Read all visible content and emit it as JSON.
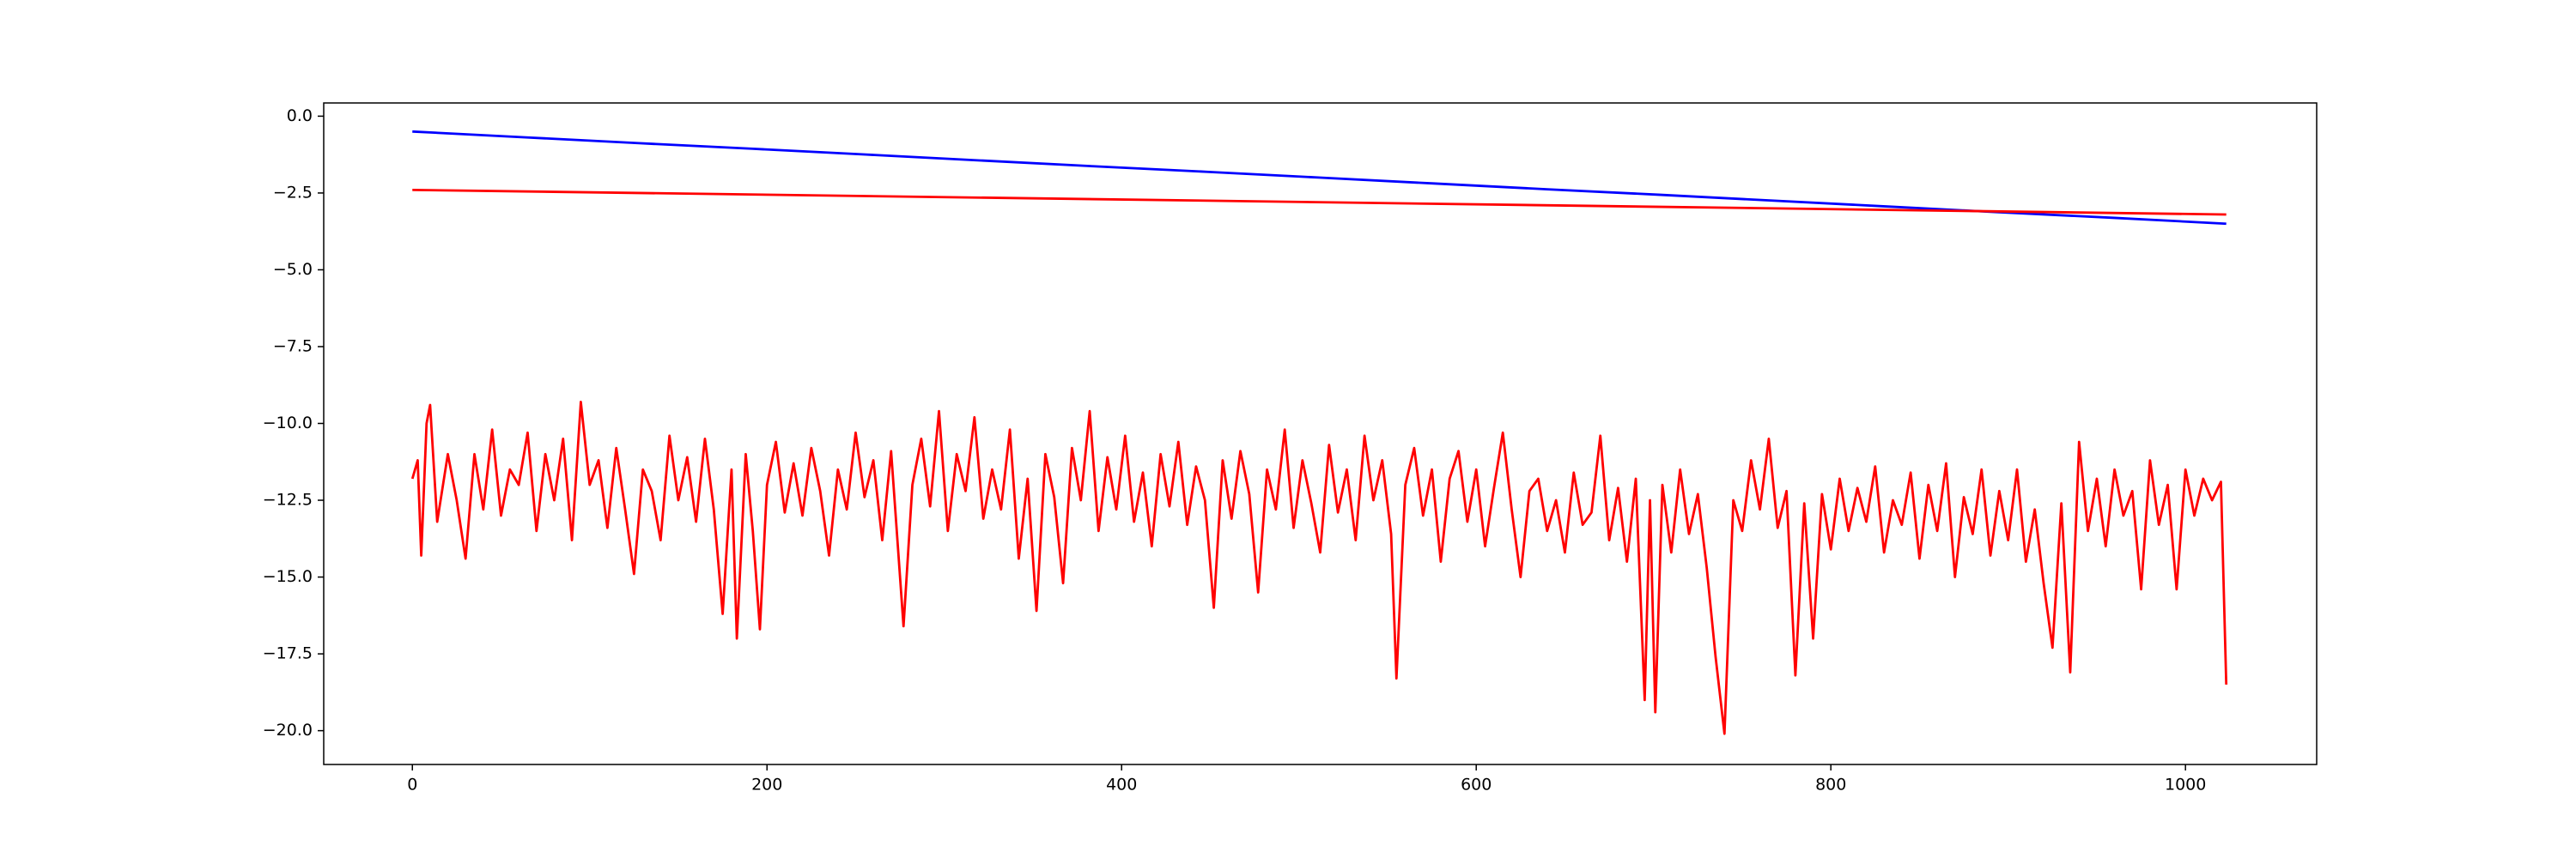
{
  "chart_data": {
    "type": "line",
    "xlim": [
      -50,
      1074
    ],
    "ylim": [
      -21.1,
      0.43
    ],
    "xticks": [
      0,
      200,
      400,
      600,
      800,
      1000
    ],
    "yticks": [
      {
        "value": 0,
        "label": "0.0"
      },
      {
        "value": -2.5,
        "label": "−2.5"
      },
      {
        "value": -5,
        "label": "−5.0"
      },
      {
        "value": -7.5,
        "label": "−7.5"
      },
      {
        "value": -10,
        "label": "−10.0"
      },
      {
        "value": -12.5,
        "label": "−12.5"
      },
      {
        "value": -15,
        "label": "−15.0"
      },
      {
        "value": -17.5,
        "label": "−17.5"
      },
      {
        "value": -20,
        "label": "−20.0"
      }
    ],
    "series": [
      {
        "color": "#0000ff",
        "x": [
          0,
          64,
          128,
          192,
          256,
          320,
          384,
          448,
          512,
          576,
          640,
          704,
          768,
          832,
          896,
          960,
          1023
        ],
        "values": [
          -0.5,
          -0.69,
          -0.88,
          -1.06,
          -1.25,
          -1.44,
          -1.63,
          -1.81,
          -2.0,
          -2.19,
          -2.38,
          -2.56,
          -2.75,
          -2.94,
          -3.13,
          -3.31,
          -3.5
        ]
      },
      {
        "color": "#ff0000",
        "x": [
          0,
          1023
        ],
        "values": [
          -2.4,
          -3.2
        ]
      },
      {
        "color": "#ff0000",
        "x": [
          0,
          3,
          5,
          8,
          10,
          14,
          20,
          25,
          30,
          35,
          40,
          45,
          50,
          55,
          60,
          65,
          70,
          75,
          80,
          85,
          90,
          95,
          100,
          105,
          110,
          115,
          120,
          125,
          130,
          135,
          140,
          145,
          150,
          155,
          160,
          165,
          170,
          175,
          180,
          183,
          188,
          192,
          196,
          200,
          205,
          210,
          215,
          220,
          225,
          230,
          235,
          240,
          245,
          250,
          255,
          260,
          265,
          270,
          277,
          282,
          287,
          292,
          297,
          302,
          307,
          312,
          317,
          322,
          327,
          332,
          337,
          342,
          347,
          352,
          357,
          362,
          367,
          372,
          377,
          382,
          387,
          392,
          397,
          402,
          407,
          412,
          417,
          422,
          427,
          432,
          437,
          442,
          447,
          452,
          457,
          462,
          467,
          472,
          477,
          482,
          487,
          492,
          497,
          502,
          507,
          512,
          517,
          522,
          527,
          532,
          537,
          542,
          547,
          552,
          555,
          560,
          565,
          570,
          575,
          580,
          585,
          590,
          595,
          600,
          605,
          610,
          615,
          620,
          625,
          630,
          635,
          640,
          645,
          650,
          655,
          660,
          665,
          670,
          675,
          680,
          685,
          690,
          695,
          698,
          701,
          705,
          710,
          715,
          720,
          725,
          730,
          735,
          740,
          745,
          750,
          755,
          760,
          765,
          770,
          775,
          780,
          785,
          790,
          795,
          800,
          805,
          810,
          815,
          820,
          825,
          830,
          835,
          840,
          845,
          850,
          855,
          860,
          865,
          870,
          875,
          880,
          885,
          890,
          895,
          900,
          905,
          910,
          915,
          920,
          925,
          930,
          935,
          940,
          945,
          950,
          955,
          960,
          965,
          970,
          975,
          980,
          985,
          990,
          995,
          1000,
          1005,
          1010,
          1015,
          1020,
          1023
        ],
        "values": [
          -11.8,
          -11.2,
          -14.3,
          -10,
          -9.4,
          -13.2,
          -11,
          -12.5,
          -14.4,
          -11,
          -12.8,
          -10.2,
          -13,
          -11.5,
          -12,
          -10.3,
          -13.5,
          -11,
          -12.5,
          -10.5,
          -13.8,
          -9.3,
          -12,
          -11.2,
          -13.4,
          -10.8,
          -12.8,
          -14.9,
          -11.5,
          -12.2,
          -13.8,
          -10.4,
          -12.5,
          -11.1,
          -13.2,
          -10.5,
          -12.8,
          -16.2,
          -11.5,
          -17,
          -11,
          -13.5,
          -16.7,
          -12,
          -10.6,
          -12.9,
          -11.3,
          -13,
          -10.8,
          -12.2,
          -14.3,
          -11.5,
          -12.8,
          -10.3,
          -12.4,
          -11.2,
          -13.8,
          -10.9,
          -16.6,
          -12,
          -10.5,
          -12.7,
          -9.6,
          -13.5,
          -11,
          -12.2,
          -9.8,
          -13.1,
          -11.5,
          -12.8,
          -10.2,
          -14.4,
          -11.8,
          -16.1,
          -11,
          -12.4,
          -15.2,
          -10.8,
          -12.5,
          -9.6,
          -13.5,
          -11.1,
          -12.8,
          -10.4,
          -13.2,
          -11.6,
          -14,
          -11,
          -12.7,
          -10.6,
          -13.3,
          -11.4,
          -12.5,
          -16,
          -11.2,
          -13.1,
          -10.9,
          -12.3,
          -15.5,
          -11.5,
          -12.8,
          -10.2,
          -13.4,
          -11.2,
          -12.6,
          -14.2,
          -10.7,
          -12.9,
          -11.5,
          -13.8,
          -10.4,
          -12.5,
          -11.2,
          -13.6,
          -18.3,
          -12,
          -10.8,
          -13,
          -11.5,
          -14.5,
          -11.8,
          -10.9,
          -13.2,
          -11.5,
          -14,
          -12.1,
          -10.3,
          -12.8,
          -15,
          -12.2,
          -11.8,
          -13.5,
          -12.5,
          -14.2,
          -11.6,
          -13.3,
          -12.9,
          -10.4,
          -13.8,
          -12.1,
          -14.5,
          -11.8,
          -19,
          -12.5,
          -19.4,
          -12,
          -14.2,
          -11.5,
          -13.6,
          -12.3,
          -14.7,
          -17.6,
          -20.1,
          -12.5,
          -13.5,
          -11.2,
          -12.8,
          -10.5,
          -13.4,
          -12.2,
          -18.2,
          -12.6,
          -17,
          -12.3,
          -14.1,
          -11.8,
          -13.5,
          -12.1,
          -13.2,
          -11.4,
          -14.2,
          -12.5,
          -13.3,
          -11.6,
          -14.4,
          -12,
          -13.5,
          -11.3,
          -15,
          -12.4,
          -13.6,
          -11.5,
          -14.3,
          -12.2,
          -13.8,
          -11.5,
          -14.5,
          -12.8,
          -15.2,
          -17.3,
          -12.6,
          -18.1,
          -10.6,
          -13.5,
          -11.8,
          -14,
          -11.5,
          -13,
          -12.2,
          -15.4,
          -11.2,
          -13.3,
          -12,
          -15.4,
          -11.5,
          -13,
          -11.8,
          -12.5,
          -11.9,
          -18.5
        ]
      }
    ]
  }
}
